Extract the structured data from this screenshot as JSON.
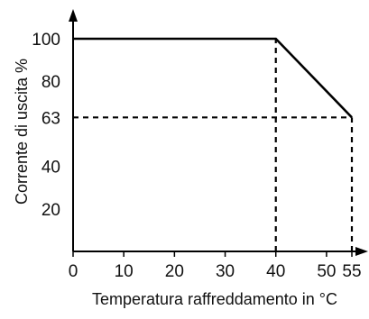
{
  "chart_data": {
    "type": "line",
    "xlabel": "Temperatura raffreddamento in °C",
    "ylabel": "Corrente di uscita %",
    "xlim": [
      0,
      55
    ],
    "ylim": [
      0,
      100
    ],
    "x_ticks": [
      "0",
      "10",
      "20",
      "30",
      "40",
      "50",
      "55"
    ],
    "y_ticks": [
      "20",
      "40",
      "63",
      "80",
      "100"
    ],
    "series": [
      {
        "x": [
          0,
          40,
          55
        ],
        "y": [
          100,
          100,
          63
        ]
      }
    ],
    "reference_lines": [
      {
        "kind": "vertical",
        "x": 40,
        "y_to": 100
      },
      {
        "kind": "vertical",
        "x": 55,
        "y_to": 63
      },
      {
        "kind": "horizontal",
        "y": 63,
        "x_to": 55
      }
    ],
    "grid": false,
    "legend": "none",
    "colors": {
      "line": "#000000",
      "axis": "#000000",
      "text": "#111111"
    }
  }
}
